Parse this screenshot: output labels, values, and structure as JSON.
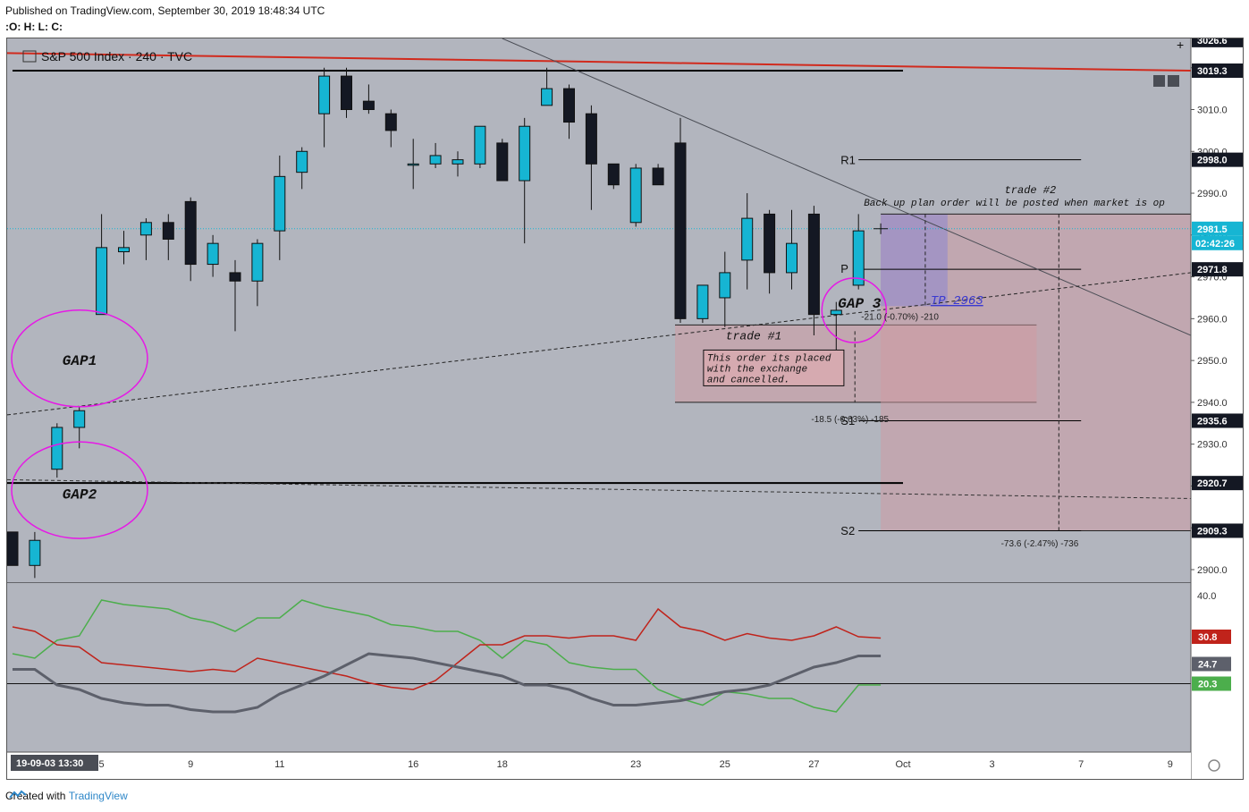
{
  "header": {
    "published": "Published on TradingView.com, September 30, 2019 18:48:34 UTC",
    "ohlc": ":O: H: L: C:",
    "symbol": "S&P 500 Index · 240 · TVC"
  },
  "footer": {
    "created_with": "Created with",
    "brand": "TradingView"
  },
  "colors": {
    "background": "#b2b5be",
    "bull": "#16b5d3",
    "bear": "#141823",
    "red": "#d12a1d",
    "magenta": "#e619e6",
    "green": "#4cae4c",
    "adx_red": "#c0231b",
    "adx_gray": "#5d606b"
  },
  "chart_data": {
    "type": "candlestick",
    "ylim": [
      2897,
      3027
    ],
    "y_ticks": [
      2900.0,
      2910.0,
      2920.0,
      2930.0,
      2940.0,
      2950.0,
      2960.0,
      2970.0,
      2980.0,
      2990.0,
      3000.0,
      3010.0,
      3020.0
    ],
    "y_tick_labels": [
      "2900.0",
      "2910.0",
      "2920.0",
      "2930.0",
      "2940.0",
      "2950.0",
      "2960.0",
      "2970.0",
      "2980.0",
      "2990.0",
      "3000.0",
      "3010.0",
      "3020.0"
    ],
    "x_tick_labels": [
      {
        "label": "5",
        "i": 4
      },
      {
        "label": "9",
        "i": 8
      },
      {
        "label": "11",
        "i": 12
      },
      {
        "label": "16",
        "i": 18
      },
      {
        "label": "18",
        "i": 22
      },
      {
        "label": "23",
        "i": 28
      },
      {
        "label": "25",
        "i": 32
      },
      {
        "label": "27",
        "i": 36
      },
      {
        "label": "Oct",
        "i": 40
      },
      {
        "label": "3",
        "i": 44
      },
      {
        "label": "7",
        "i": 48
      },
      {
        "label": "9",
        "i": 52
      }
    ],
    "x_cursor_label": "19-09-03   13:30",
    "candles": [
      {
        "o": 2909,
        "h": 2909,
        "l": 2901,
        "c": 2901
      },
      {
        "o": 2901,
        "h": 2909,
        "l": 2898,
        "c": 2907
      },
      {
        "o": 2924,
        "h": 2935,
        "l": 2922,
        "c": 2934
      },
      {
        "o": 2934,
        "h": 2939,
        "l": 2929,
        "c": 2938
      },
      {
        "o": 2961,
        "h": 2985,
        "l": 2961,
        "c": 2977
      },
      {
        "o": 2976,
        "h": 2981,
        "l": 2973,
        "c": 2977
      },
      {
        "o": 2980,
        "h": 2984,
        "l": 2974,
        "c": 2983
      },
      {
        "o": 2983,
        "h": 2985,
        "l": 2974,
        "c": 2979
      },
      {
        "o": 2988,
        "h": 2989,
        "l": 2969,
        "c": 2973
      },
      {
        "o": 2973,
        "h": 2980,
        "l": 2970,
        "c": 2978
      },
      {
        "o": 2971,
        "h": 2974,
        "l": 2957,
        "c": 2969
      },
      {
        "o": 2969,
        "h": 2979,
        "l": 2963,
        "c": 2978
      },
      {
        "o": 2981,
        "h": 2999,
        "l": 2974,
        "c": 2994
      },
      {
        "o": 2995,
        "h": 3001,
        "l": 2991,
        "c": 3000
      },
      {
        "o": 3009,
        "h": 3020,
        "l": 3001,
        "c": 3018
      },
      {
        "o": 3018,
        "h": 3020,
        "l": 3008,
        "c": 3010
      },
      {
        "o": 3012,
        "h": 3016,
        "l": 3009,
        "c": 3010
      },
      {
        "o": 3009,
        "h": 3010,
        "l": 3001,
        "c": 3005
      },
      {
        "o": 2997,
        "h": 3003,
        "l": 2991,
        "c": 2997
      },
      {
        "o": 2997,
        "h": 3002,
        "l": 2996,
        "c": 2999
      },
      {
        "o": 2997,
        "h": 3000,
        "l": 2994,
        "c": 2998
      },
      {
        "o": 2997,
        "h": 3006,
        "l": 2996,
        "c": 3006
      },
      {
        "o": 3002,
        "h": 3003,
        "l": 2993,
        "c": 2993
      },
      {
        "o": 2993,
        "h": 3008,
        "l": 2978,
        "c": 3006
      },
      {
        "o": 3011,
        "h": 3020,
        "l": 3011,
        "c": 3015
      },
      {
        "o": 3015,
        "h": 3016,
        "l": 3003,
        "c": 3007
      },
      {
        "o": 3009,
        "h": 3011,
        "l": 2986,
        "c": 2997
      },
      {
        "o": 2997,
        "h": 2997,
        "l": 2991,
        "c": 2992
      },
      {
        "o": 2983,
        "h": 2997,
        "l": 2982,
        "c": 2996
      },
      {
        "o": 2996,
        "h": 2997,
        "l": 2992,
        "c": 2992
      },
      {
        "o": 3002,
        "h": 3008,
        "l": 2959,
        "c": 2960
      },
      {
        "o": 2960,
        "h": 2968,
        "l": 2959,
        "c": 2968
      },
      {
        "o": 2965,
        "h": 2976,
        "l": 2958,
        "c": 2971
      },
      {
        "o": 2974,
        "h": 2990,
        "l": 2967,
        "c": 2984
      },
      {
        "o": 2985,
        "h": 2986,
        "l": 2966,
        "c": 2971
      },
      {
        "o": 2971,
        "h": 2986,
        "l": 2967,
        "c": 2978
      },
      {
        "o": 2985,
        "h": 2987,
        "l": 2956,
        "c": 2961
      },
      {
        "o": 2961,
        "h": 2964,
        "l": 2946,
        "c": 2962
      },
      {
        "o": 2968,
        "h": 2985,
        "l": 2967,
        "c": 2981
      }
    ],
    "price_labels": [
      {
        "value": 3026.6,
        "text": "3026.6",
        "color": "#141823"
      },
      {
        "value": 3019.3,
        "text": "3019.3",
        "color": "#141823"
      },
      {
        "value": 2998.0,
        "text": "2998.0",
        "color": "#141823"
      },
      {
        "value": 2981.5,
        "text": "2981.5",
        "color": "#16b5d3"
      },
      {
        "value": 2971.8,
        "text": "2971.8",
        "color": "#141823"
      },
      {
        "value": 2935.6,
        "text": "2935.6",
        "color": "#141823"
      },
      {
        "value": 2920.7,
        "text": "2920.7",
        "color": "#141823"
      },
      {
        "value": 2909.3,
        "text": "2909.3",
        "color": "#141823"
      }
    ],
    "countdown": "02:42:26",
    "annotations": {
      "gap1": "GAP1",
      "gap2": "GAP2",
      "gap3": "GAP 3",
      "r1": "R1",
      "p": "P",
      "s1": "S1",
      "s2": "S2",
      "trade2": "trade #2",
      "trade2_note": "Back up plan  order will be posted when market is op",
      "tp": "TP 2963",
      "pos1_stat": "-21.0 (-0.70%) -210",
      "trade1": "trade #1",
      "trade1_note_1": "This order its placed",
      "trade1_note_2": "with the exchange",
      "trade1_note_3": "and cancelled.",
      "pos2_stat": "-18.5 (-0.63%) -185",
      "pos3_stat": "-73.6 (-2.47%) -736"
    },
    "adx": {
      "y_ticks": [
        40.0
      ],
      "y_tick_labels": [
        "40.0"
      ],
      "ylim": [
        5,
        43
      ],
      "plus_di": [
        27,
        26,
        30,
        31,
        39,
        38,
        37.5,
        37,
        35,
        34,
        32,
        35,
        35,
        39,
        37.5,
        36.5,
        35.5,
        33.5,
        33,
        32,
        32,
        30,
        26,
        30,
        29,
        25,
        24,
        23.5,
        23.5,
        19,
        17,
        15.5,
        18.5,
        18,
        17,
        17,
        15,
        14,
        20,
        20
      ],
      "minus_di": [
        33,
        32,
        29,
        28.5,
        25,
        24.5,
        24,
        23.5,
        23,
        23.5,
        23,
        26,
        25,
        24,
        23,
        22,
        20.5,
        19.5,
        19,
        21,
        25,
        29,
        29,
        31,
        31,
        30.5,
        31,
        31,
        30,
        37,
        33,
        32,
        30,
        31.5,
        30.5,
        30,
        31,
        33,
        30.8,
        30.5
      ],
      "adx_line": [
        23.5,
        23.5,
        20,
        19,
        17,
        16,
        15.5,
        15.5,
        14.5,
        14,
        14,
        15,
        18,
        20,
        22,
        24.5,
        27,
        26.5,
        26,
        25,
        24,
        23,
        22,
        20,
        20,
        19,
        17,
        15.5,
        15.5,
        16,
        16.5,
        17.5,
        18.5,
        19,
        20,
        22,
        24,
        25,
        26.5,
        26.5
      ],
      "values": {
        "minus_di": "30.8",
        "adx": "24.7",
        "plus_di": "20.3"
      }
    }
  }
}
